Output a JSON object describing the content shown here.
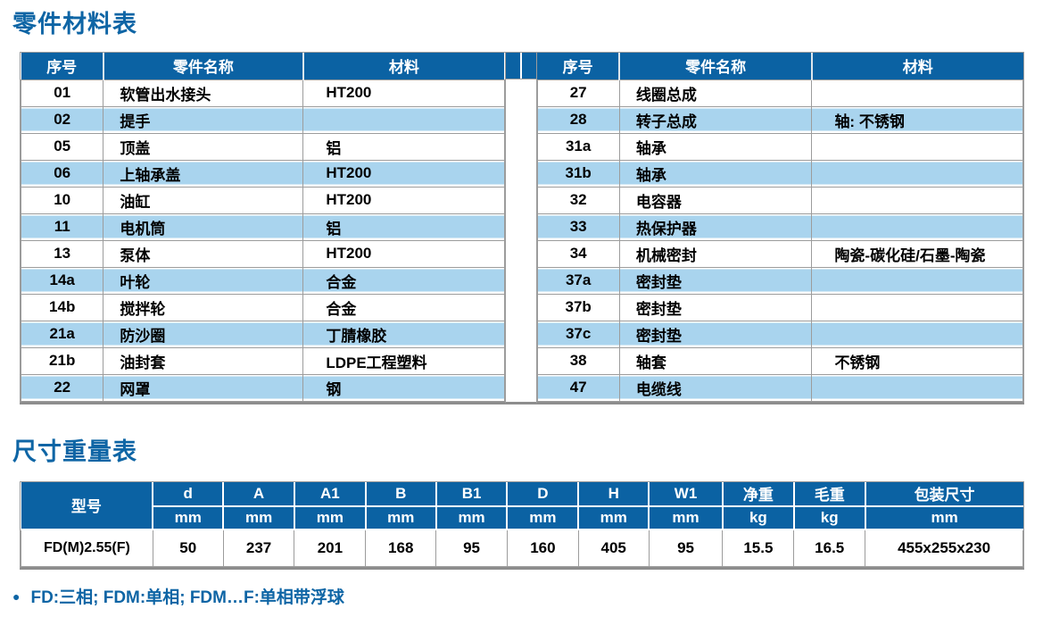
{
  "page": {
    "title1": "零件材料表",
    "title2": "尺寸重量表",
    "note_bullet": "●",
    "note": "FD:三相; FDM:单相; FDM…F:单相带浮球"
  },
  "parts_table": {
    "headers": [
      "序号",
      "零件名称",
      "材料"
    ],
    "left_rows": [
      {
        "no": "01",
        "name": "软管出水接头",
        "material": "HT200"
      },
      {
        "no": "02",
        "name": "提手",
        "material": ""
      },
      {
        "no": "05",
        "name": "顶盖",
        "material": "铝"
      },
      {
        "no": "06",
        "name": "上轴承盖",
        "material": "HT200"
      },
      {
        "no": "10",
        "name": "油缸",
        "material": "HT200"
      },
      {
        "no": "11",
        "name": "电机筒",
        "material": "铝"
      },
      {
        "no": "13",
        "name": "泵体",
        "material": "HT200"
      },
      {
        "no": "14a",
        "name": "叶轮",
        "material": "合金"
      },
      {
        "no": "14b",
        "name": "搅拌轮",
        "material": "合金"
      },
      {
        "no": "21a",
        "name": "防沙圈",
        "material": "丁腈橡胶"
      },
      {
        "no": "21b",
        "name": "油封套",
        "material": "LDPE工程塑料"
      },
      {
        "no": "22",
        "name": "网罩",
        "material": "钢"
      }
    ],
    "right_rows": [
      {
        "no": "27",
        "name": "线圈总成",
        "material": ""
      },
      {
        "no": "28",
        "name": "转子总成",
        "material": "轴: 不锈钢"
      },
      {
        "no": "31a",
        "name": "轴承",
        "material": ""
      },
      {
        "no": "31b",
        "name": "轴承",
        "material": ""
      },
      {
        "no": "32",
        "name": "电容器",
        "material": ""
      },
      {
        "no": "33",
        "name": "热保护器",
        "material": ""
      },
      {
        "no": "34",
        "name": "机械密封",
        "material": "陶瓷-碳化硅/石墨-陶瓷"
      },
      {
        "no": "37a",
        "name": "密封垫",
        "material": ""
      },
      {
        "no": "37b",
        "name": "密封垫",
        "material": ""
      },
      {
        "no": "37c",
        "name": "密封垫",
        "material": ""
      },
      {
        "no": "38",
        "name": "轴套",
        "material": "不锈钢"
      },
      {
        "no": "47",
        "name": "电缆线",
        "material": ""
      }
    ]
  },
  "dimensions_table": {
    "model_header": "型号",
    "columns": [
      {
        "label": "d",
        "unit": "mm"
      },
      {
        "label": "A",
        "unit": "mm"
      },
      {
        "label": "A1",
        "unit": "mm"
      },
      {
        "label": "B",
        "unit": "mm"
      },
      {
        "label": "B1",
        "unit": "mm"
      },
      {
        "label": "D",
        "unit": "mm"
      },
      {
        "label": "H",
        "unit": "mm"
      },
      {
        "label": "W1",
        "unit": "mm"
      },
      {
        "label": "净重",
        "unit": "kg"
      },
      {
        "label": "毛重",
        "unit": "kg"
      },
      {
        "label": "包装尺寸",
        "unit": "mm"
      }
    ],
    "rows": [
      {
        "model": "FD(M)2.55(F)",
        "values": [
          "50",
          "237",
          "201",
          "168",
          "95",
          "160",
          "405",
          "95",
          "15.5",
          "16.5",
          "455x255x230"
        ]
      }
    ]
  },
  "colors": {
    "header_blue": "#0b62a3",
    "row_blue": "#a9d4ee",
    "title_blue": "#0e65a5",
    "border_gray": "#9c9c9c"
  }
}
